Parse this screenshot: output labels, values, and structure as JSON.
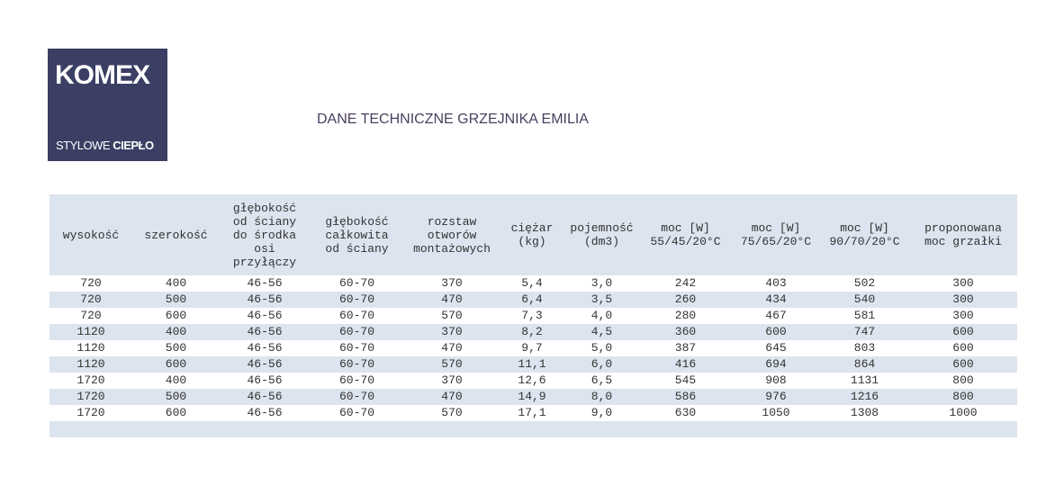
{
  "logo": {
    "brand": "KOMEX",
    "tagline_light": "STYLOWE",
    "tagline_bold": "CIEPŁO"
  },
  "title": "DANE TECHNICZNE GRZEJNIKA EMILIA",
  "table": {
    "headers": [
      "wysokość",
      "szerokość",
      "głębokość\nod ściany\ndo środka\nosi\nprzyłączy",
      "głębokość\ncałkowita\nod ściany",
      "rozstaw\notworów\nmontażowych",
      "ciężar\n(kg)",
      "pojemność\n(dm3)",
      "moc [W]\n55/45/20°C",
      "moc [W]\n75/65/20°C",
      "moc [W]\n90/70/20°C",
      "proponowana\nmoc grzałki"
    ],
    "rows": [
      [
        "720",
        "400",
        "46-56",
        "60-70",
        "370",
        "5,4",
        "3,0",
        "242",
        "403",
        "502",
        "300"
      ],
      [
        "720",
        "500",
        "46-56",
        "60-70",
        "470",
        "6,4",
        "3,5",
        "260",
        "434",
        "540",
        "300"
      ],
      [
        "720",
        "600",
        "46-56",
        "60-70",
        "570",
        "7,3",
        "4,0",
        "280",
        "467",
        "581",
        "300"
      ],
      [
        "1120",
        "400",
        "46-56",
        "60-70",
        "370",
        "8,2",
        "4,5",
        "360",
        "600",
        "747",
        "600"
      ],
      [
        "1120",
        "500",
        "46-56",
        "60-70",
        "470",
        "9,7",
        "5,0",
        "387",
        "645",
        "803",
        "600"
      ],
      [
        "1120",
        "600",
        "46-56",
        "60-70",
        "570",
        "11,1",
        "6,0",
        "416",
        "694",
        "864",
        "600"
      ],
      [
        "1720",
        "400",
        "46-56",
        "60-70",
        "370",
        "12,6",
        "6,5",
        "545",
        "908",
        "1131",
        "800"
      ],
      [
        "1720",
        "500",
        "46-56",
        "60-70",
        "470",
        "14,9",
        "8,0",
        "586",
        "976",
        "1216",
        "800"
      ],
      [
        "1720",
        "600",
        "46-56",
        "60-70",
        "570",
        "17,1",
        "9,0",
        "630",
        "1050",
        "1308",
        "1000"
      ]
    ]
  }
}
